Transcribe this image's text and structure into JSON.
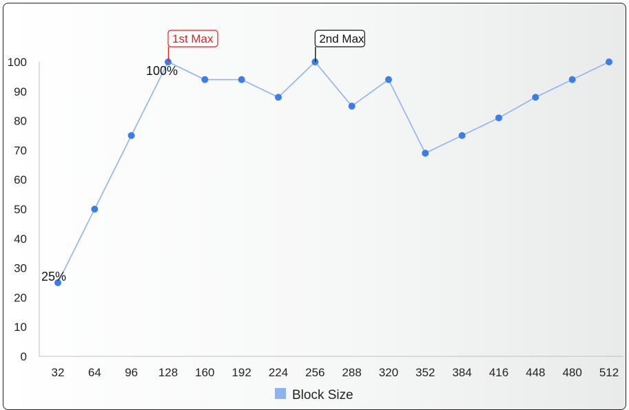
{
  "chart_data": {
    "type": "line",
    "title": "",
    "xlabel": "",
    "ylabel": "",
    "categories": [
      "32",
      "64",
      "96",
      "128",
      "160",
      "192",
      "224",
      "256",
      "288",
      "320",
      "352",
      "384",
      "416",
      "448",
      "480",
      "512"
    ],
    "series": [
      {
        "name": "Block Size",
        "values": [
          25,
          50,
          75,
          100,
          94,
          94,
          88,
          100,
          85,
          94,
          69,
          75,
          81,
          88,
          94,
          100
        ],
        "color": "#3b7de9"
      }
    ],
    "ylim": [
      0,
      100
    ],
    "yticks": [
      "0",
      "10",
      "20",
      "30",
      "40",
      "50",
      "60",
      "70",
      "80",
      "90",
      "100"
    ],
    "grid": false,
    "legend": "bottom",
    "data_labels": [
      {
        "category": "32",
        "text": "25%"
      },
      {
        "category": "128",
        "text": "100%"
      }
    ],
    "annotations": [
      {
        "category": "128",
        "text": "1st Max",
        "color": "#e0201c"
      },
      {
        "category": "256",
        "text": "2nd Max",
        "color": "#111111"
      }
    ]
  }
}
